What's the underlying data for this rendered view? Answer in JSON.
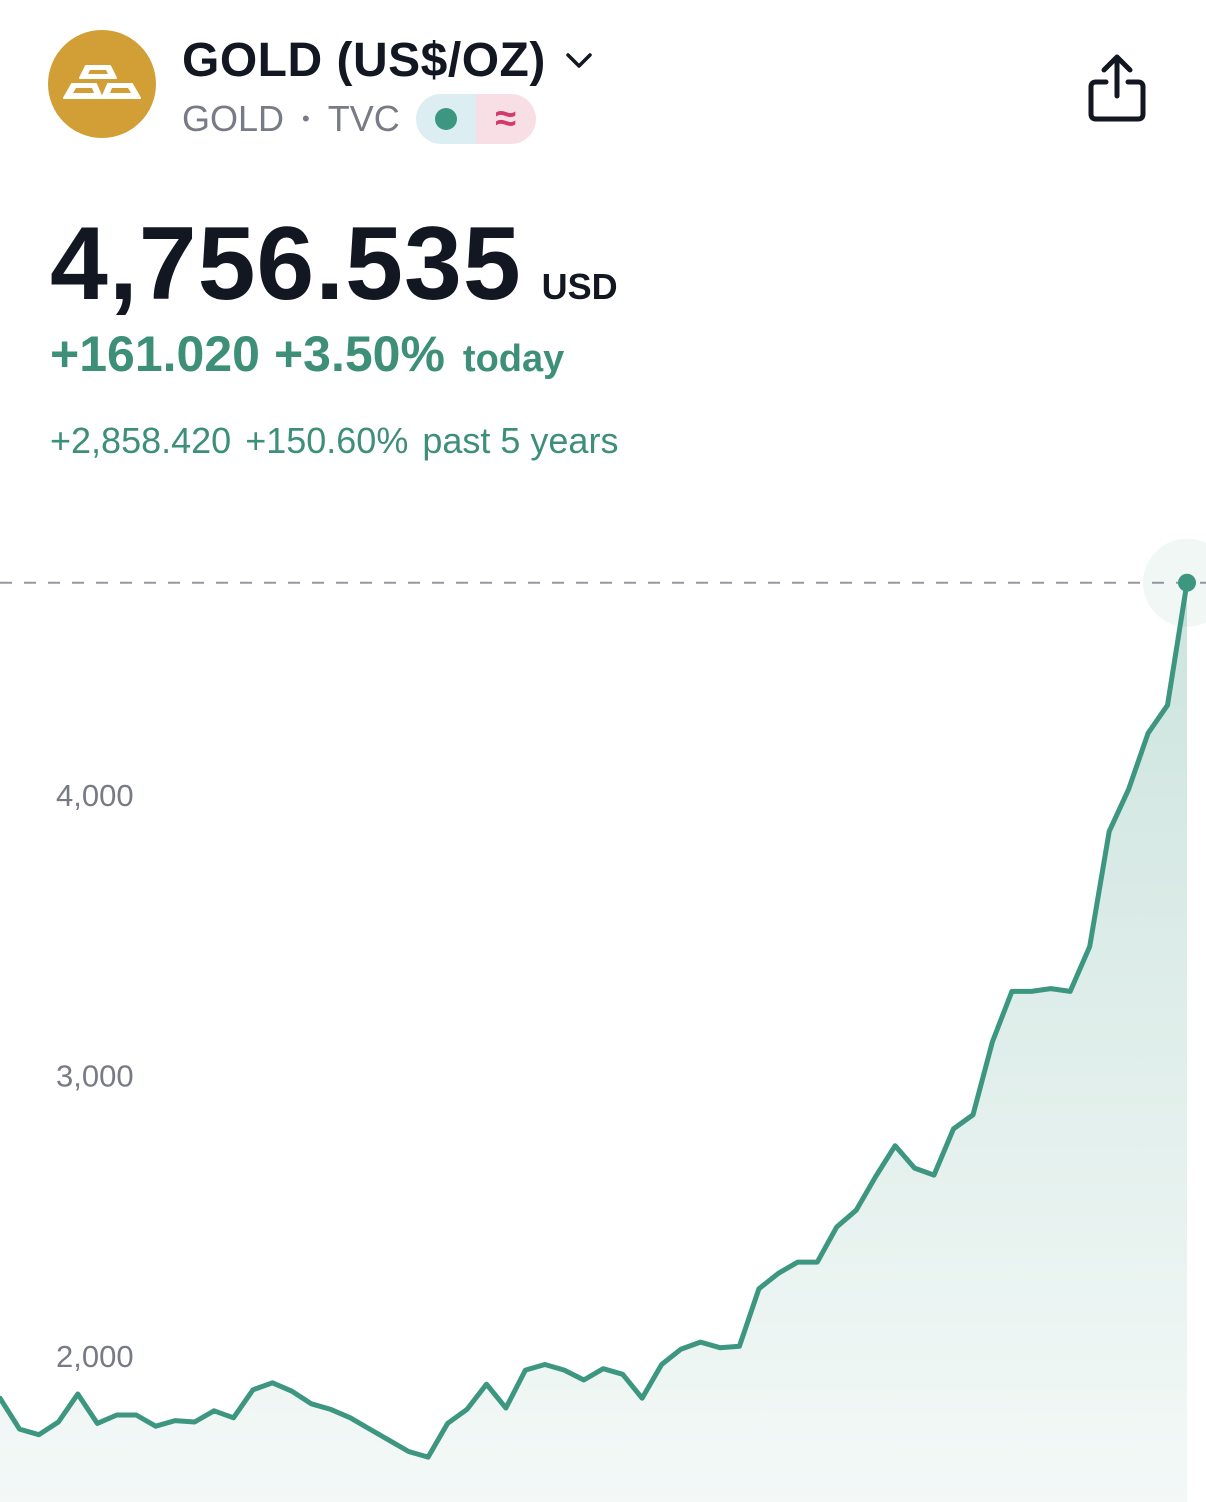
{
  "header": {
    "title": "GOLD (US$/OZ)",
    "symbol": "GOLD",
    "exchange": "TVC",
    "separator": "•",
    "badge_icon_1": "market-open-dot-icon",
    "badge_icon_2": "approx-icon",
    "badge_symbol": "≈",
    "logo_icon": "gold-bars-icon",
    "share_icon": "share-icon",
    "dropdown_icon": "chevron-down-icon"
  },
  "quote": {
    "price": "4,756.535",
    "currency": "USD",
    "change_today_abs": "+161.020",
    "change_today_pct": "+3.50%",
    "change_today_label": "today",
    "change_period_abs": "+2,858.420",
    "change_period_pct": "+150.60%",
    "change_period_label": "past 5 years"
  },
  "colors": {
    "positive": "#3d8f78",
    "line": "#3d9680",
    "logo": "#d19f35"
  },
  "chart_data": {
    "type": "area",
    "y_ticks": [
      "2,000",
      "3,000",
      "4,000"
    ],
    "y_tick_values": [
      2000,
      3000,
      4000
    ],
    "ylim": [
      1480,
      4980
    ],
    "last_value_line": 4756.535,
    "values": [
      1850,
      1740,
      1720,
      1765,
      1865,
      1760,
      1790,
      1790,
      1750,
      1770,
      1765,
      1805,
      1780,
      1880,
      1905,
      1875,
      1830,
      1810,
      1780,
      1740,
      1700,
      1660,
      1640,
      1760,
      1810,
      1900,
      1815,
      1950,
      1970,
      1950,
      1915,
      1955,
      1935,
      1850,
      1970,
      2025,
      2050,
      2030,
      2035,
      2240,
      2295,
      2335,
      2335,
      2460,
      2520,
      2640,
      2750,
      2670,
      2645,
      2810,
      2860,
      3120,
      3300,
      3300,
      3310,
      3300,
      3460,
      3870,
      4020,
      4220,
      4320,
      4756.535
    ]
  }
}
